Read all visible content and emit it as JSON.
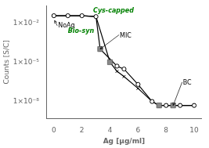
{
  "chart_data": {
    "type": "line",
    "log": "y",
    "grid": false,
    "xlabel": "Ag [μg/ml]",
    "ylabel": "Counts [S/C]",
    "xlim": [
      -0.5,
      10.5
    ],
    "xticks": [
      0,
      2,
      4,
      6,
      8,
      10
    ],
    "ylim": [
      5e-10,
      0.2
    ],
    "yticks": [
      {
        "value": 1e-08,
        "label": "1×10⁻⁸"
      },
      {
        "value": 1e-05,
        "label": "1×10⁻⁵"
      },
      {
        "value": 0.01,
        "label": "1×10⁻²"
      }
    ],
    "series": [
      {
        "name": "Cys-capped",
        "type": "line",
        "color": "#000000",
        "marker": "circle",
        "line_style": "solid",
        "x": [
          0,
          1,
          2,
          3,
          3.3,
          4.5,
          5,
          6,
          7,
          7.5,
          8,
          9,
          10
        ],
        "values": [
          0.035,
          0.035,
          0.035,
          0.03,
          0.0001,
          5e-06,
          3e-06,
          2e-07,
          1e-08,
          5e-09,
          5e-09,
          5e-09,
          5e-09
        ]
      },
      {
        "name": "Bio-syn",
        "type": "line",
        "color": "#000000",
        "marker": "x",
        "line_style": "solid",
        "x": [
          0,
          1,
          2,
          3,
          4,
          4.5,
          5,
          6,
          7,
          7.5,
          8,
          8.5,
          9,
          10
        ],
        "values": [
          0.035,
          0.035,
          0.035,
          0.03,
          1e-05,
          2e-06,
          8e-07,
          1e-07,
          1e-08,
          5e-09,
          5e-09,
          5e-09,
          5e-09,
          5e-09
        ]
      },
      {
        "name": "MIC",
        "type": "scatter",
        "color": "#888888",
        "marker": "square",
        "x": [
          3.3,
          4.0
        ],
        "values": [
          0.0001,
          1e-05
        ]
      },
      {
        "name": "BC",
        "type": "scatter",
        "color": "#888888",
        "marker": "square",
        "x": [
          7.5,
          8.5
        ],
        "values": [
          5e-09,
          5e-09
        ]
      }
    ],
    "annotations": [
      {
        "text": "NoAg",
        "x": 0.3,
        "y": 0.006,
        "color": "black",
        "arrow_to": [
          0.05,
          0.015
        ]
      },
      {
        "text": "Bio-syn",
        "x": 1.0,
        "y": 0.004,
        "color": "green"
      },
      {
        "text": "Cys-capped",
        "x": 2.8,
        "y": 0.045,
        "color": "green"
      },
      {
        "text": "MIC",
        "x": 4.7,
        "y": 0.0008,
        "color": "black",
        "arrow_to": [
          3.3,
          0.0001
        ]
      },
      {
        "text": "BC",
        "x": 9.2,
        "y": 2e-07,
        "color": "black",
        "arrow_to": [
          8.5,
          5e-09
        ]
      }
    ],
    "legend": false
  }
}
